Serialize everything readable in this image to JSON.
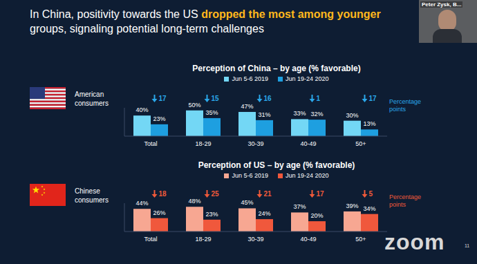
{
  "title_start": "In China, positivity towards the US",
  "title_highlight": "dropped the most among younger",
  "title_end": "groups, signaling potential long-term challenges",
  "presenter_label": "Peter Zysk, B...",
  "watermark": "zoom",
  "slide_number": "11",
  "chart_data": [
    {
      "type": "bar",
      "title": "Perception of China – by age (% favorable)",
      "group_label": "American consumers",
      "categories": [
        "Total",
        "18-29",
        "30-39",
        "40-49",
        "50+"
      ],
      "series": [
        {
          "name": "Jun 5-6 2019",
          "color": "#73d7f5",
          "values": [
            40,
            50,
            47,
            33,
            30
          ],
          "value_labels": [
            "40%",
            "50%",
            "47%",
            "33%",
            "30%"
          ]
        },
        {
          "name": "Jun 19-24 2020",
          "color": "#1e9fe0",
          "values": [
            23,
            35,
            31,
            32,
            13
          ],
          "value_labels": [
            "23%",
            "35%",
            "31%",
            "32%",
            "13%"
          ]
        }
      ],
      "changes": {
        "values": [
          17,
          15,
          16,
          1,
          17
        ],
        "label": "Percentage points",
        "color": "#2aa8ea"
      },
      "ylim": [
        0,
        55
      ],
      "tick_labels": "x",
      "data_labels": true,
      "grid": false
    },
    {
      "type": "bar",
      "title": "Perception of US – by age (% favorable)",
      "group_label": "Chinese consumers",
      "categories": [
        "Total",
        "18-29",
        "30-39",
        "40-49",
        "50+"
      ],
      "series": [
        {
          "name": "Jun 5-6 2019",
          "color": "#f7a792",
          "values": [
            44,
            48,
            45,
            37,
            39
          ],
          "value_labels": [
            "44%",
            "48%",
            "45%",
            "37%",
            "39%"
          ]
        },
        {
          "name": "Jun 19-24 2020",
          "color": "#f0583c",
          "values": [
            26,
            23,
            24,
            20,
            34
          ],
          "value_labels": [
            "26%",
            "23%",
            "24%",
            "20%",
            "34%"
          ]
        }
      ],
      "changes": {
        "values": [
          18,
          25,
          21,
          17,
          5
        ],
        "label": "Percentage points",
        "color": "#f05a3a"
      },
      "ylim": [
        0,
        55
      ],
      "tick_labels": "x",
      "data_labels": true,
      "grid": false
    }
  ]
}
